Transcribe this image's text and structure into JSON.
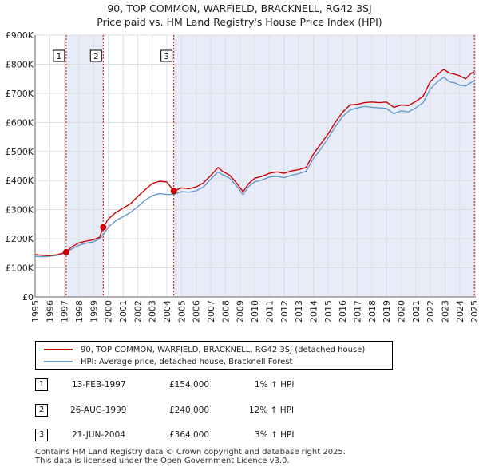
{
  "title": {
    "line1": "90, TOP COMMON, WARFIELD, BRACKNELL, RG42 3SJ",
    "line2": "Price paid vs. HM Land Registry's House Price Index (HPI)"
  },
  "colors": {
    "price": "#cc0000",
    "hpi": "#6699cc",
    "shade": "#e8ecf8",
    "grid": "#dddddd",
    "vline": "#cc0000"
  },
  "chart_data": {
    "type": "line",
    "title": "Price paid vs. HM Land Registry's House Price Index (HPI)",
    "xlabel": "",
    "ylabel": "",
    "xlim": [
      1995,
      2025.1
    ],
    "ylim": [
      0,
      900000
    ],
    "y_ticks": [
      0,
      100000,
      200000,
      300000,
      400000,
      500000,
      600000,
      700000,
      800000,
      900000
    ],
    "y_tick_labels": [
      "£0",
      "£100K",
      "£200K",
      "£300K",
      "£400K",
      "£500K",
      "£600K",
      "£700K",
      "£800K",
      "£900K"
    ],
    "x_ticks": [
      1995,
      1996,
      1997,
      1998,
      1999,
      2000,
      2001,
      2002,
      2003,
      2004,
      2005,
      2006,
      2007,
      2008,
      2009,
      2010,
      2011,
      2012,
      2013,
      2014,
      2015,
      2016,
      2017,
      2018,
      2019,
      2020,
      2021,
      2022,
      2023,
      2024,
      2025
    ],
    "x_tick_labels": [
      "1995",
      "1996",
      "1997",
      "1998",
      "1999",
      "2000",
      "2001",
      "2002",
      "2003",
      "2004",
      "2005",
      "2006",
      "2007",
      "2008",
      "2009",
      "2010",
      "2011",
      "2012",
      "2013",
      "2014",
      "2015",
      "2016",
      "2017",
      "2018",
      "2019",
      "2020",
      "2021",
      "2022",
      "2023",
      "2024",
      "2025"
    ],
    "grid": true,
    "legend_position": "bottom",
    "series": [
      {
        "name": "90, TOP COMMON, WARFIELD, BRACKNELL, RG42 3SJ (detached house)",
        "color": "#cc0000",
        "x": [
          1995.0,
          1995.5,
          1996.0,
          1996.5,
          1997.12,
          1997.5,
          1998.0,
          1998.5,
          1999.0,
          1999.4,
          1999.65,
          2000.0,
          2000.5,
          2001.0,
          2001.5,
          2002.0,
          2002.5,
          2003.0,
          2003.5,
          2004.0,
          2004.47,
          2005.0,
          2005.5,
          2006.0,
          2006.5,
          2007.0,
          2007.5,
          2007.8,
          2008.3,
          2008.7,
          2009.2,
          2009.6,
          2010.0,
          2010.5,
          2011.0,
          2011.5,
          2012.0,
          2012.5,
          2013.0,
          2013.5,
          2014.0,
          2014.5,
          2015.0,
          2015.5,
          2016.0,
          2016.5,
          2017.0,
          2017.5,
          2018.0,
          2018.5,
          2019.0,
          2019.5,
          2020.0,
          2020.5,
          2021.0,
          2021.5,
          2022.0,
          2022.5,
          2022.9,
          2023.3,
          2023.7,
          2024.0,
          2024.4,
          2024.8,
          2025.0
        ],
        "values": [
          146000,
          143000,
          142000,
          145000,
          154000,
          172000,
          186000,
          192000,
          197000,
          205000,
          240000,
          268000,
          290000,
          305000,
          320000,
          345000,
          368000,
          390000,
          398000,
          395000,
          364000,
          375000,
          372000,
          378000,
          392000,
          418000,
          445000,
          432000,
          418000,
          395000,
          362000,
          390000,
          408000,
          415000,
          425000,
          430000,
          425000,
          433000,
          438000,
          445000,
          490000,
          525000,
          560000,
          600000,
          635000,
          660000,
          662000,
          668000,
          670000,
          668000,
          670000,
          652000,
          660000,
          658000,
          672000,
          690000,
          740000,
          765000,
          782000,
          770000,
          765000,
          760000,
          750000,
          770000,
          772000
        ]
      },
      {
        "name": "HPI: Average price, detached house, Bracknell Forest",
        "color": "#6699cc",
        "x": [
          1995.0,
          1995.5,
          1996.0,
          1996.5,
          1997.12,
          1997.5,
          1998.0,
          1998.5,
          1999.0,
          1999.4,
          1999.65,
          2000.0,
          2000.5,
          2001.0,
          2001.5,
          2002.0,
          2002.5,
          2003.0,
          2003.5,
          2004.0,
          2004.47,
          2005.0,
          2005.5,
          2006.0,
          2006.5,
          2007.0,
          2007.5,
          2007.8,
          2008.3,
          2008.7,
          2009.2,
          2009.6,
          2010.0,
          2010.5,
          2011.0,
          2011.5,
          2012.0,
          2012.5,
          2013.0,
          2013.5,
          2014.0,
          2014.5,
          2015.0,
          2015.5,
          2016.0,
          2016.5,
          2017.0,
          2017.5,
          2018.0,
          2018.5,
          2019.0,
          2019.5,
          2020.0,
          2020.5,
          2021.0,
          2021.5,
          2022.0,
          2022.5,
          2022.9,
          2023.3,
          2023.7,
          2024.0,
          2024.4,
          2024.8,
          2025.0
        ],
        "values": [
          140000,
          138000,
          140000,
          143000,
          152000,
          165000,
          178000,
          185000,
          190000,
          200000,
          214000,
          240000,
          262000,
          276000,
          290000,
          310000,
          332000,
          348000,
          355000,
          352000,
          353000,
          362000,
          360000,
          365000,
          378000,
          405000,
          430000,
          420000,
          408000,
          385000,
          352000,
          380000,
          396000,
          402000,
          412000,
          415000,
          410000,
          418000,
          424000,
          432000,
          475000,
          508000,
          545000,
          585000,
          620000,
          642000,
          650000,
          655000,
          652000,
          650000,
          648000,
          630000,
          640000,
          636000,
          650000,
          668000,
          715000,
          740000,
          755000,
          740000,
          735000,
          728000,
          725000,
          738000,
          742000
        ]
      }
    ],
    "sales": [
      {
        "id": "1",
        "x": 1997.12,
        "value": 154000
      },
      {
        "id": "2",
        "x": 1999.65,
        "value": 240000
      },
      {
        "id": "3",
        "x": 2004.47,
        "value": 364000
      }
    ]
  },
  "legend": {
    "price_label": "90, TOP COMMON, WARFIELD, BRACKNELL, RG42 3SJ (detached house)",
    "hpi_label": "HPI: Average price, detached house, Bracknell Forest"
  },
  "transactions": [
    {
      "id": "1",
      "date": "13-FEB-1997",
      "price": "£154,000",
      "hpi": "1% ↑ HPI"
    },
    {
      "id": "2",
      "date": "26-AUG-1999",
      "price": "£240,000",
      "hpi": "12% ↑ HPI"
    },
    {
      "id": "3",
      "date": "21-JUN-2004",
      "price": "£364,000",
      "hpi": "3% ↑ HPI"
    }
  ],
  "footer": {
    "line1": "Contains HM Land Registry data © Crown copyright and database right 2025.",
    "line2": "This data is licensed under the Open Government Licence v3.0."
  }
}
